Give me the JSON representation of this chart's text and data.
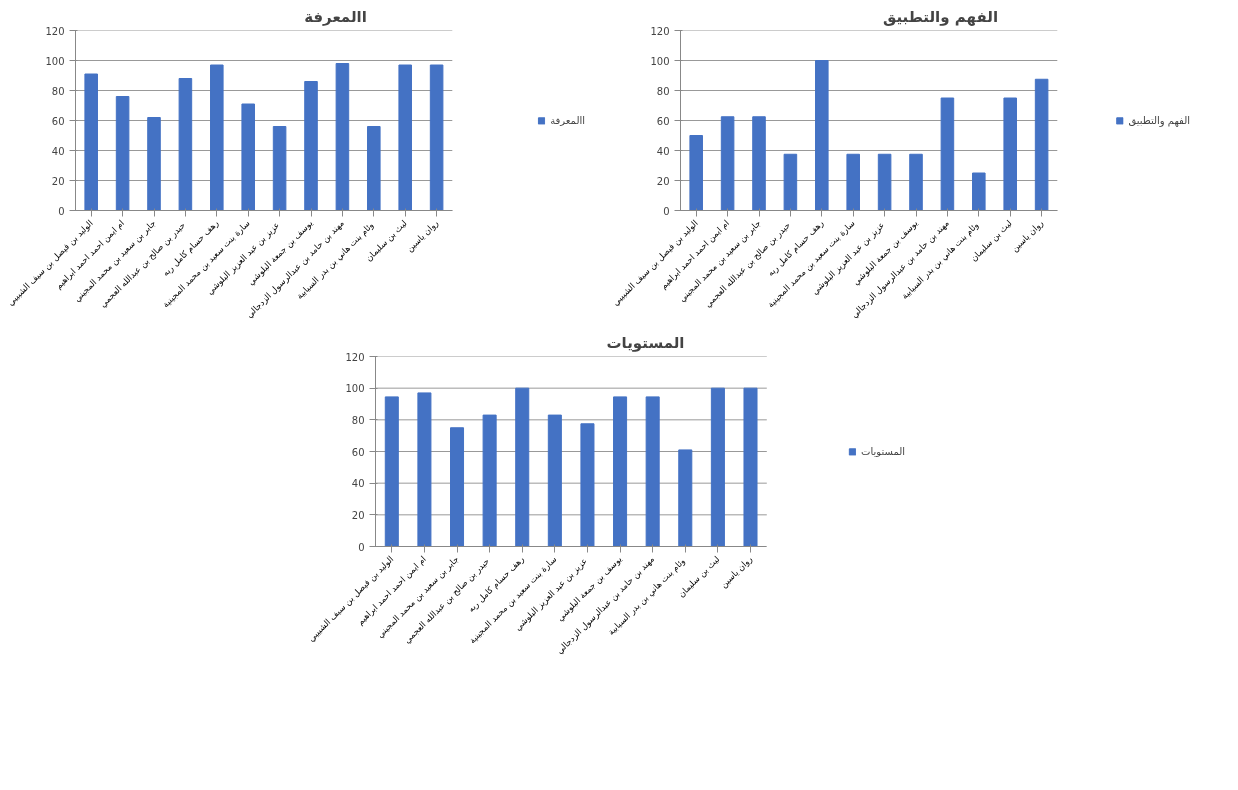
{
  "chart_data": [
    {
      "type": "bar",
      "title": "االمعرفة",
      "categories": [
        "الوليد بن فيصل بن سيف الشبيبي",
        "ام ايمن احمد احمد ابراهيم",
        "جابر بن سعيد بن محمد المجيني",
        "حيدر بن صالح  بن عبدالله العجمي",
        "رهف حسام كامل ربه",
        "سارة بنت سعيد بن محمد المجينية",
        "عزيز بن عبد العزيز  البلوشي",
        "يوسف بن جمعة البلوشي",
        "مهند بن حامد بن عبدالرسول الزدجالي",
        "وئام بنت هاني بن بدر  السيابية",
        "ليث بن سليمان",
        "روان ياسين"
      ],
      "series": [
        {
          "name": "االمعرفة",
          "color": "#4472c4",
          "values": [
            91,
            76,
            62,
            88,
            97,
            71,
            56,
            86,
            98,
            56,
            97,
            97
          ]
        }
      ],
      "ylim": [
        0,
        120
      ],
      "yticks": [
        0,
        20,
        40,
        60,
        80,
        100,
        120
      ],
      "grid": "y",
      "legend": "right"
    },
    {
      "type": "bar",
      "title": "الفهم والتطبيق",
      "categories": [
        "الوليد بن فيصل بن سيف الشبيبي",
        "ام ايمن احمد احمد ابراهيم",
        "جابر بن سعيد بن محمد المجيني",
        "حيدر بن صالح  بن عبدالله العجمي",
        "رهف حسام كامل ربه",
        "سارة بنت سعيد بن محمد المجينية",
        "عزيز بن عبد العزيز  البلوشي",
        "يوسف بن جمعة البلوشي",
        "مهند بن حامد بن عبدالرسول الزدجالي",
        "وئام بنت هاني بن بدر  السيابية",
        "ليث بن سليمان",
        "روان ياسين"
      ],
      "series": [
        {
          "name": "الفهم والتطبيق",
          "color": "#4472c4",
          "values": [
            50,
            62.5,
            62.5,
            37.5,
            100,
            37.5,
            37.5,
            37.5,
            75,
            25,
            75,
            87.5
          ]
        }
      ],
      "ylim": [
        0,
        120
      ],
      "yticks": [
        0,
        20,
        40,
        60,
        80,
        100,
        120
      ],
      "grid": "y",
      "legend": "right"
    },
    {
      "type": "bar",
      "title": "المستويات",
      "categories": [
        "الوليد بن فيصل بن سيف الشبيبي",
        "ام ايمن احمد احمد ابراهيم",
        "جابر بن سعيد بن محمد المجيني",
        "حيدر بن صالح  بن عبدالله العجمي",
        "رهف حسام كامل ربه",
        "سارة بنت سعيد بن محمد المجينية",
        "عزيز بن عبد العزيز  البلوشي",
        "يوسف بن جمعة البلوشي",
        "مهند بن حامد بن عبدالرسول الزدجالي",
        "وئام بنت هاني بن بدر  السيابية",
        "ليث بن سليمان",
        "روان ياسين"
      ],
      "series": [
        {
          "name": "المستويات",
          "color": "#4472c4",
          "values": [
            94.5,
            97,
            75,
            83,
            100,
            83,
            77.5,
            94.5,
            94.5,
            61,
            100,
            100
          ]
        }
      ],
      "ylim": [
        0,
        120
      ],
      "yticks": [
        0,
        20,
        40,
        60,
        80,
        100,
        120
      ],
      "grid": "y",
      "legend": "right"
    }
  ]
}
